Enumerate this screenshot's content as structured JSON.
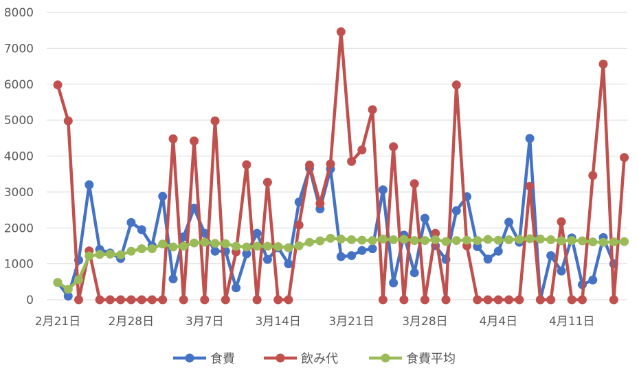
{
  "chart_data": {
    "type": "line",
    "title": "",
    "xlabel": "",
    "ylabel": "",
    "ylim": [
      0,
      8000
    ],
    "yticks": [
      0,
      1000,
      2000,
      3000,
      4000,
      5000,
      6000,
      7000,
      8000
    ],
    "ytick_labels": [
      "0",
      "1000",
      "2000",
      "3000",
      "4000",
      "5000",
      "6000",
      "7000",
      "8000"
    ],
    "grid": true,
    "legend_position": "bottom",
    "x": [
      "2月21日",
      "2月22日",
      "2月23日",
      "2月24日",
      "2月25日",
      "2月26日",
      "2月27日",
      "2月28日",
      "3月1日",
      "3月2日",
      "3月3日",
      "3月4日",
      "3月5日",
      "3月6日",
      "3月7日",
      "3月8日",
      "3月9日",
      "3月10日",
      "3月11日",
      "3月12日",
      "3月13日",
      "3月14日",
      "3月15日",
      "3月16日",
      "3月17日",
      "3月18日",
      "3月19日",
      "3月20日",
      "3月21日",
      "3月22日",
      "3月23日",
      "3月24日",
      "3月25日",
      "3月26日",
      "3月27日",
      "3月28日",
      "3月29日",
      "3月30日",
      "3月31日",
      "4月1日",
      "4月2日",
      "4月3日",
      "4月4日",
      "4月5日",
      "4月6日",
      "4月7日",
      "4月8日",
      "4月9日",
      "4月10日",
      "4月11日",
      "4月12日",
      "4月13日",
      "4月14日",
      "4月15日",
      "4月16日",
      "4月17日"
    ],
    "xtick_labels": [
      {
        "index": 0,
        "label": "2月21日"
      },
      {
        "index": 7,
        "label": "2月28日"
      },
      {
        "index": 14,
        "label": "3月7日"
      },
      {
        "index": 21,
        "label": "3月14日"
      },
      {
        "index": 28,
        "label": "3月21日"
      },
      {
        "index": 35,
        "label": "3月28日"
      },
      {
        "index": 42,
        "label": "4月4日"
      },
      {
        "index": 49,
        "label": "4月11日"
      }
    ],
    "series": [
      {
        "name": "食費",
        "color": "#4472C4",
        "values": [
          480,
          100,
          1100,
          3200,
          1400,
          1300,
          1150,
          2150,
          1950,
          1500,
          2880,
          580,
          1750,
          2550,
          1850,
          1350,
          1350,
          330,
          1280,
          1850,
          1120,
          1450,
          1000,
          2720,
          3660,
          2530,
          3640,
          1200,
          1230,
          1370,
          1420,
          3060,
          470,
          1800,
          750,
          2270,
          1500,
          1120,
          2480,
          2870,
          1480,
          1130,
          1350,
          2160,
          1600,
          4490,
          0,
          1230,
          800,
          1720,
          420,
          550,
          1730,
          1000,
          -1,
          -1
        ]
      },
      {
        "name": "飲み代",
        "color": "#C0504D",
        "values": [
          5980,
          4980,
          0,
          1360,
          0,
          0,
          0,
          0,
          0,
          0,
          0,
          4480,
          0,
          4420,
          0,
          4980,
          0,
          1330,
          3760,
          0,
          3270,
          0,
          0,
          2080,
          3750,
          2680,
          3780,
          7460,
          3850,
          4170,
          5290,
          0,
          4260,
          0,
          3230,
          0,
          1850,
          0,
          5980,
          1500,
          0,
          0,
          0,
          0,
          0,
          3160,
          0,
          0,
          2170,
          0,
          0,
          3460,
          6560,
          0,
          3960,
          -1
        ]
      },
      {
        "name": "食費平均",
        "color": "#9BBB59",
        "values": [
          480,
          290,
          560,
          1220,
          1260,
          1270,
          1250,
          1350,
          1420,
          1420,
          1550,
          1470,
          1490,
          1580,
          1600,
          1570,
          1560,
          1490,
          1470,
          1490,
          1490,
          1480,
          1450,
          1500,
          1600,
          1640,
          1710,
          1690,
          1670,
          1660,
          1650,
          1690,
          1670,
          1680,
          1650,
          1650,
          1670,
          1620,
          1650,
          1660,
          1650,
          1680,
          1660,
          1670,
          1680,
          1700,
          1690,
          1670,
          1640,
          1650,
          1640,
          1610,
          1600,
          1610,
          1620,
          -1
        ]
      }
    ]
  },
  "legend": {
    "items": [
      {
        "label": "食費",
        "color": "#4472C4"
      },
      {
        "label": "飲み代",
        "color": "#C0504D"
      },
      {
        "label": "食費平均",
        "color": "#9BBB59"
      }
    ]
  }
}
